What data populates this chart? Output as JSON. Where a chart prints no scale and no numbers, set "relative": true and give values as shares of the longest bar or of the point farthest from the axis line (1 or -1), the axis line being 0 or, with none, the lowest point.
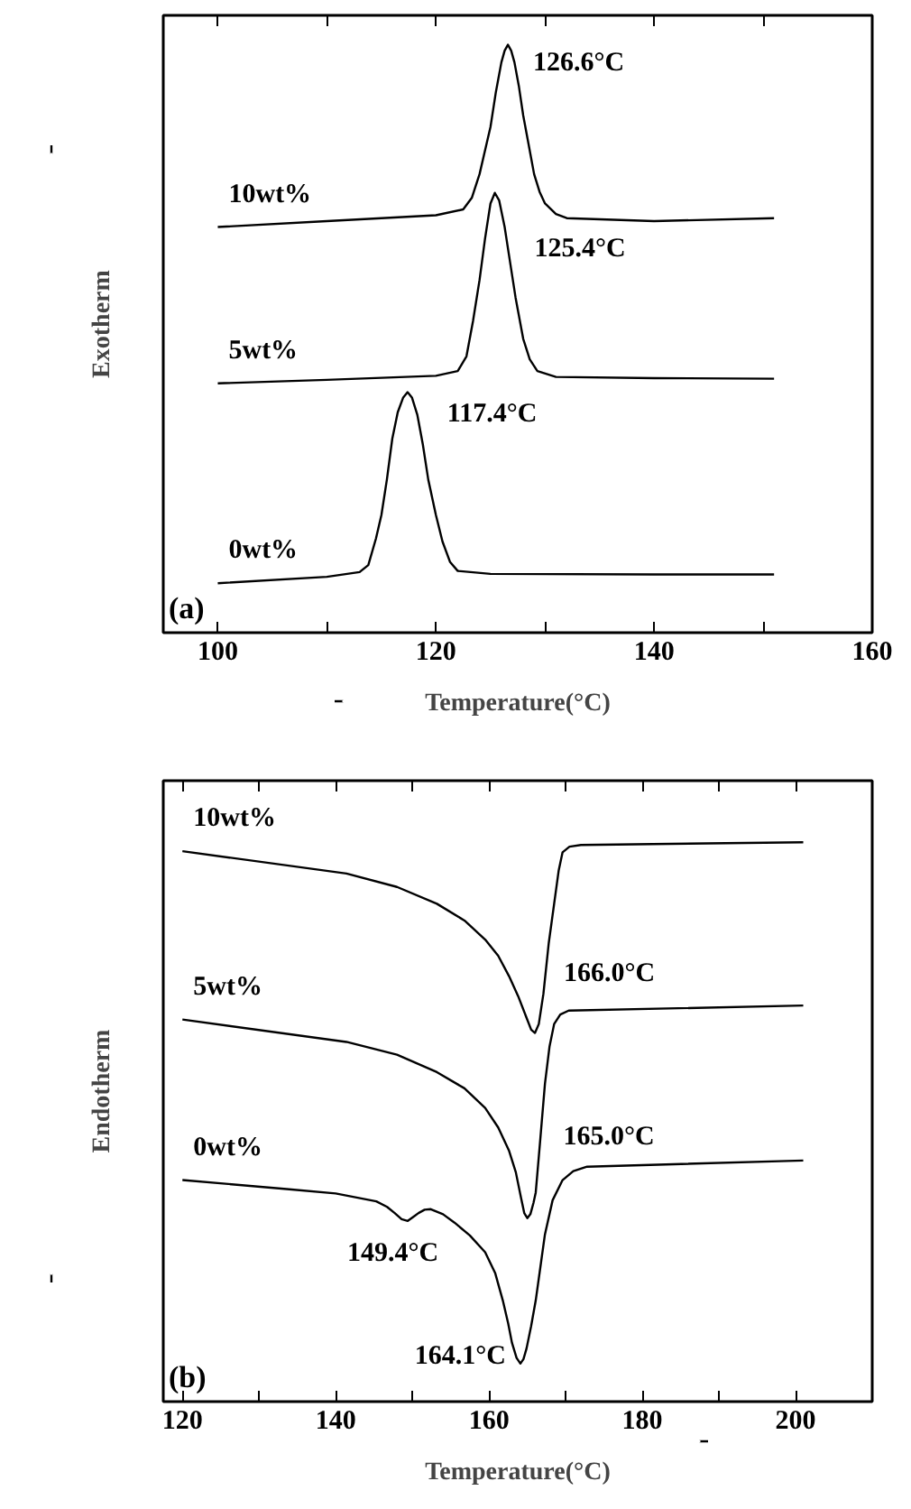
{
  "chart_data": [
    {
      "type": "line",
      "relative": true,
      "xlabel": "Temperature(°C)",
      "ylabel": "Exotherm",
      "xlim": [
        95,
        160
      ],
      "xticks": [
        100,
        {
          "value": 110,
          "label": null
        },
        120,
        {
          "value": 130,
          "label": null
        },
        140,
        {
          "value": 150,
          "label": null
        },
        160
      ],
      "tick_labels": "x",
      "grid": false,
      "series": [
        {
          "name": "0wt%",
          "color": "#000000",
          "x": [
            100,
            110,
            113,
            113.8,
            114.5,
            115,
            115.5,
            116,
            116.5,
            117,
            117.4,
            117.8,
            118.3,
            118.8,
            119.3,
            120,
            120.6,
            121.3,
            122,
            125,
            140,
            151
          ],
          "values": [
            0.084,
            0.095,
            0.103,
            0.115,
            0.16,
            0.2,
            0.26,
            0.33,
            0.375,
            0.4,
            0.409,
            0.4,
            0.37,
            0.32,
            0.26,
            0.2,
            0.155,
            0.12,
            0.105,
            0.1,
            0.099,
            0.099
          ]
        },
        {
          "name": "5wt%",
          "color": "#000000",
          "x": [
            100,
            110,
            120,
            122,
            122.8,
            123.4,
            124,
            124.5,
            125,
            125.4,
            125.8,
            126.3,
            126.8,
            127.3,
            128,
            128.6,
            129.3,
            131,
            140,
            151
          ],
          "values": [
            0.424,
            0.43,
            0.437,
            0.445,
            0.47,
            0.53,
            0.6,
            0.67,
            0.73,
            0.748,
            0.735,
            0.69,
            0.63,
            0.57,
            0.5,
            0.465,
            0.445,
            0.435,
            0.433,
            0.432
          ]
        },
        {
          "name": "10wt%",
          "color": "#000000",
          "x": [
            100,
            110,
            120,
            122.5,
            123.3,
            124,
            124.5,
            125,
            125.5,
            126,
            126.3,
            126.6,
            126.9,
            127.2,
            127.6,
            128,
            128.5,
            129,
            129.5,
            130,
            131,
            132,
            140,
            151
          ],
          "values": [
            0.69,
            0.7,
            0.71,
            0.72,
            0.74,
            0.78,
            0.82,
            0.86,
            0.92,
            0.97,
            0.99,
            1.0,
            0.99,
            0.97,
            0.93,
            0.88,
            0.83,
            0.78,
            0.75,
            0.73,
            0.712,
            0.705,
            0.7,
            0.705
          ]
        }
      ],
      "annotations": [
        {
          "text": "126.6°C",
          "x": 126.6,
          "y": 1.0
        },
        {
          "text": "125.4°C",
          "x": 125.4,
          "y": 0.748
        },
        {
          "text": "117.4°C",
          "x": 117.4,
          "y": 0.409
        },
        "(a)"
      ]
    },
    {
      "type": "line",
      "relative": true,
      "xlabel": "Temperature(°C)",
      "ylabel": "Endotherm",
      "xlim": [
        117.5,
        210
      ],
      "xticks": [
        120,
        {
          "value": 130,
          "label": null
        },
        140,
        {
          "value": 150,
          "label": null
        },
        160,
        {
          "value": 170,
          "label": null
        },
        180,
        {
          "value": 190,
          "label": null
        },
        200
      ],
      "tick_labels": "x",
      "grid": false,
      "series": [
        {
          "name": "0wt%",
          "color": "#000000",
          "x": [
            120,
            133.6,
            140,
            145.3,
            146.7,
            147.7,
            148.6,
            149.4,
            150.1,
            150.8,
            151.6,
            152.4,
            154,
            155.5,
            157.5,
            159.5,
            160.8,
            161.8,
            162.5,
            163,
            163.6,
            164.1,
            164.5,
            164.9,
            165.5,
            166.1,
            166.7,
            167.3,
            168.3,
            169.6,
            171,
            172.8,
            201
          ],
          "values": [
            0.396,
            0.38,
            0.372,
            0.358,
            0.348,
            0.337,
            0.326,
            0.323,
            0.33,
            0.337,
            0.343,
            0.344,
            0.335,
            0.32,
            0.297,
            0.267,
            0.23,
            0.181,
            0.14,
            0.105,
            0.078,
            0.068,
            0.076,
            0.095,
            0.135,
            0.181,
            0.24,
            0.299,
            0.36,
            0.396,
            0.412,
            0.42,
            0.431
          ]
        },
        {
          "name": "5wt%",
          "color": "#000000",
          "x": [
            120,
            141.4,
            148,
            153.2,
            156.8,
            159.5,
            161.2,
            162.6,
            163.5,
            164.2,
            164.6,
            165.0,
            165.4,
            165.8,
            166.1,
            166.7,
            167.3,
            167.9,
            168.5,
            169.3,
            170.4,
            201
          ],
          "values": [
            0.683,
            0.643,
            0.62,
            0.589,
            0.56,
            0.525,
            0.49,
            0.449,
            0.41,
            0.363,
            0.337,
            0.328,
            0.335,
            0.355,
            0.374,
            0.47,
            0.568,
            0.635,
            0.675,
            0.692,
            0.699,
            0.708
          ]
        },
        {
          "name": "10wt%",
          "color": "#000000",
          "x": [
            120,
            141.4,
            148,
            153.2,
            156.8,
            159.5,
            161.2,
            162.6,
            163.8,
            164.9,
            165.5,
            166.0,
            166.5,
            167.1,
            167.8,
            168.5,
            169.1,
            169.6,
            170.5,
            172,
            201
          ],
          "values": [
            0.984,
            0.944,
            0.92,
            0.89,
            0.86,
            0.826,
            0.797,
            0.761,
            0.725,
            0.686,
            0.665,
            0.659,
            0.675,
            0.729,
            0.82,
            0.89,
            0.95,
            0.982,
            0.992,
            0.995,
            1.0
          ]
        }
      ],
      "annotations": [
        {
          "text": "166.0°C",
          "x": 166.0,
          "y": 0.659
        },
        {
          "text": "165.0°C",
          "x": 165.0,
          "y": 0.328
        },
        {
          "text": "149.4°C",
          "x": 149.4,
          "y": 0.323
        },
        {
          "text": "164.1°C",
          "x": 164.1,
          "y": 0.068
        },
        "(b)"
      ]
    }
  ]
}
